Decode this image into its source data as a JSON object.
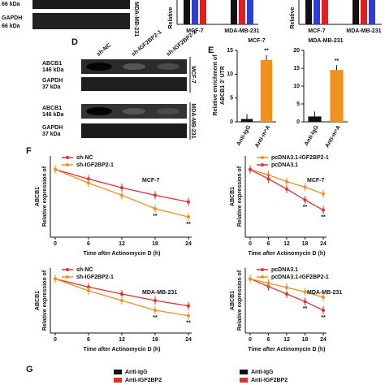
{
  "top": {
    "blot_labels": [
      "66 kDa",
      "GAPDH",
      "66 kDa"
    ],
    "cell_line": "MDA-MB-231",
    "y_label": "Relative",
    "charts": [
      {
        "categories": [
          "MCF-7",
          "MDA-MB-231"
        ]
      },
      {
        "categories": [
          "MCF-7",
          "MDA-MB-231"
        ]
      }
    ]
  },
  "panel_d": {
    "label": "D",
    "columns": [
      "sh-NC",
      "sh-IGF2BP2-1",
      "sh-IGF2BP2-2"
    ],
    "rows": [
      {
        "protein": "ABCB1",
        "size": "146 kDa"
      },
      {
        "protein": "GAPDH",
        "size": "37 kDa"
      },
      {
        "protein": "ABCB1",
        "size": "146 kDa"
      },
      {
        "protein": "GAPDH",
        "size": "37 kDa"
      }
    ],
    "cell_lines": [
      "MCF-7",
      "MDA-MB-231"
    ]
  },
  "panel_e": {
    "label": "E",
    "y_label": [
      "Relative enrichment of",
      "ABCB1 3' UTR"
    ],
    "charts": [
      {
        "type": "bar",
        "title": "MCF-7",
        "categories": [
          "Anti-IgG",
          "Anti-m⁶A"
        ],
        "values": [
          0.6,
          13
        ],
        "colors": [
          "#111111",
          "#f0901e"
        ],
        "ylim": [
          0,
          15
        ],
        "yticks": [
          0,
          5,
          10,
          15
        ],
        "annotation": "**"
      },
      {
        "type": "bar",
        "title": "MDA-MB-231",
        "categories": [
          "Anti-IgG",
          "Anti-m⁶A"
        ],
        "values": [
          1.5,
          14.5
        ],
        "colors": [
          "#111111",
          "#f0901e"
        ],
        "ylim": [
          0,
          20
        ],
        "yticks": [
          0,
          5,
          10,
          15,
          20
        ],
        "annotation": "**"
      }
    ]
  },
  "panel_f": {
    "label": "F",
    "y_label": [
      "ABCB1",
      "Relative expression of"
    ],
    "x_label": "Time after Actinomycin D (h)",
    "charts": [
      {
        "type": "line",
        "cell_line": "MCF-7",
        "x": [
          0,
          6,
          12,
          18,
          24
        ],
        "xlim": [
          0,
          24
        ],
        "xticks": [
          0,
          6,
          12,
          18,
          24
        ],
        "ylim": [
          0,
          1.2
        ],
        "series": [
          {
            "name": "sh-NC",
            "color": "#e03030",
            "values": [
              1.0,
              0.86,
              0.73,
              0.62,
              0.52
            ]
          },
          {
            "name": "sh-IGF2BP2-1",
            "color": "#f0901e",
            "values": [
              1.0,
              0.8,
              0.62,
              0.42,
              0.3
            ]
          }
        ],
        "annotations": [
          {
            "x": 18,
            "text": "**"
          },
          {
            "x": 24,
            "text": "**"
          }
        ]
      },
      {
        "type": "line",
        "cell_line": "MCF-7",
        "x": [
          0,
          6,
          12,
          18,
          24
        ],
        "xlim": [
          0,
          24
        ],
        "xticks": [
          0,
          6,
          12,
          18,
          24
        ],
        "ylim": [
          0,
          1.2
        ],
        "series": [
          {
            "name": "pcDNA3.1-IGF2BP2-1",
            "color": "#f0901e",
            "values": [
              1.0,
              0.92,
              0.82,
              0.74,
              0.64
            ]
          },
          {
            "name": "pcDNA3.1",
            "color": "#e03030",
            "values": [
              1.0,
              0.86,
              0.71,
              0.55,
              0.4
            ]
          }
        ],
        "annotations": [
          {
            "x": 18,
            "text": "**"
          },
          {
            "x": 24,
            "text": "**"
          }
        ]
      },
      {
        "type": "line",
        "cell_line": "MDA-MB-231",
        "x": [
          0,
          6,
          12,
          18,
          24
        ],
        "xlim": [
          0,
          24
        ],
        "xticks": [
          0,
          6,
          12,
          18,
          24
        ],
        "ylim": [
          0,
          1.2
        ],
        "series": [
          {
            "name": "sh-NC",
            "color": "#e03030",
            "values": [
              1.0,
              0.85,
              0.72,
              0.6,
              0.5
            ]
          },
          {
            "name": "sh-IGF2BP2-1",
            "color": "#f0901e",
            "values": [
              1.0,
              0.78,
              0.6,
              0.42,
              0.32
            ]
          }
        ],
        "annotations": [
          {
            "x": 18,
            "text": "**"
          },
          {
            "x": 24,
            "text": "**"
          }
        ]
      },
      {
        "type": "line",
        "cell_line": "MDA-MB-231",
        "x": [
          0,
          6,
          12,
          18,
          24
        ],
        "xlim": [
          0,
          24
        ],
        "xticks": [
          0,
          6,
          12,
          18,
          24
        ],
        "ylim": [
          0,
          1.2
        ],
        "series": [
          {
            "name": "pcDNA3.1",
            "color": "#e03030",
            "values": [
              1.0,
              0.86,
              0.72,
              0.58,
              0.42
            ]
          },
          {
            "name": "pcDNA3.1-IGF2BP2-1",
            "color": "#f0901e",
            "values": [
              1.0,
              0.92,
              0.84,
              0.76,
              0.66
            ]
          }
        ],
        "annotations": [
          {
            "x": 18,
            "text": "**"
          },
          {
            "x": 24,
            "text": "**"
          }
        ]
      }
    ]
  },
  "panel_g": {
    "label": "G",
    "legends": [
      [
        {
          "name": "Anti-IgG",
          "color": "#111111"
        },
        {
          "name": "Anti-IGF2BP2",
          "color": "#e03030"
        }
      ],
      [
        {
          "name": "Anti-IgG",
          "color": "#111111"
        },
        {
          "name": "Anti-IGF2BP2",
          "color": "#e03030"
        }
      ]
    ]
  }
}
